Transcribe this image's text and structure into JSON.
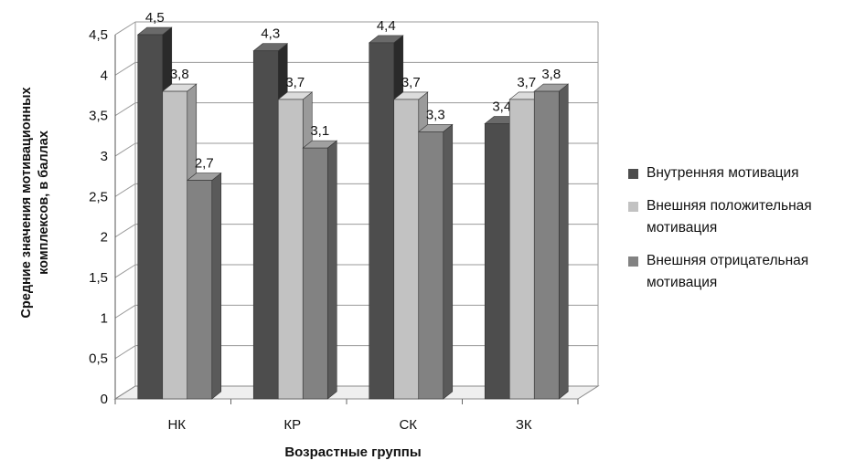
{
  "chart_data": {
    "type": "bar",
    "style": "3d-clustered",
    "categories": [
      "НК",
      "КР",
      "СК",
      "ЗК"
    ],
    "series": [
      {
        "name": "Внутренняя мотивация",
        "values": [
          4.5,
          4.3,
          4.4,
          3.4
        ],
        "labels": [
          "4,5",
          "4,3",
          "4,4",
          "3,4"
        ]
      },
      {
        "name": "Внешняя положительная мотивация",
        "values": [
          3.8,
          3.7,
          3.7,
          3.7
        ],
        "labels": [
          "3,8",
          "3,7",
          "3,7",
          "3,7"
        ]
      },
      {
        "name": "Внешняя отрицательная мотивация",
        "values": [
          2.7,
          3.1,
          3.3,
          3.8
        ],
        "labels": [
          "2,7",
          "3,1",
          "3,3",
          "3,8"
        ]
      }
    ],
    "ylabel": "Средние значения мотивационных комплексов, в баллах",
    "xlabel": "Возрастные группы",
    "ylim": [
      0,
      4.5
    ],
    "yticks": [
      "0",
      "0,5",
      "1",
      "1,5",
      "2",
      "2,5",
      "3",
      "3,5",
      "4",
      "4,5"
    ],
    "grid": true,
    "legend_position": "right"
  },
  "colors": {
    "series_front": [
      "#4d4d4d",
      "#c2c2c2",
      "#828282"
    ],
    "series_side": [
      "#2a2a2a",
      "#9a9a9a",
      "#5a5a5a"
    ],
    "series_top": [
      "#6a6a6a",
      "#dcdcdc",
      "#a0a0a0"
    ],
    "grid": "#9a9a9a"
  }
}
